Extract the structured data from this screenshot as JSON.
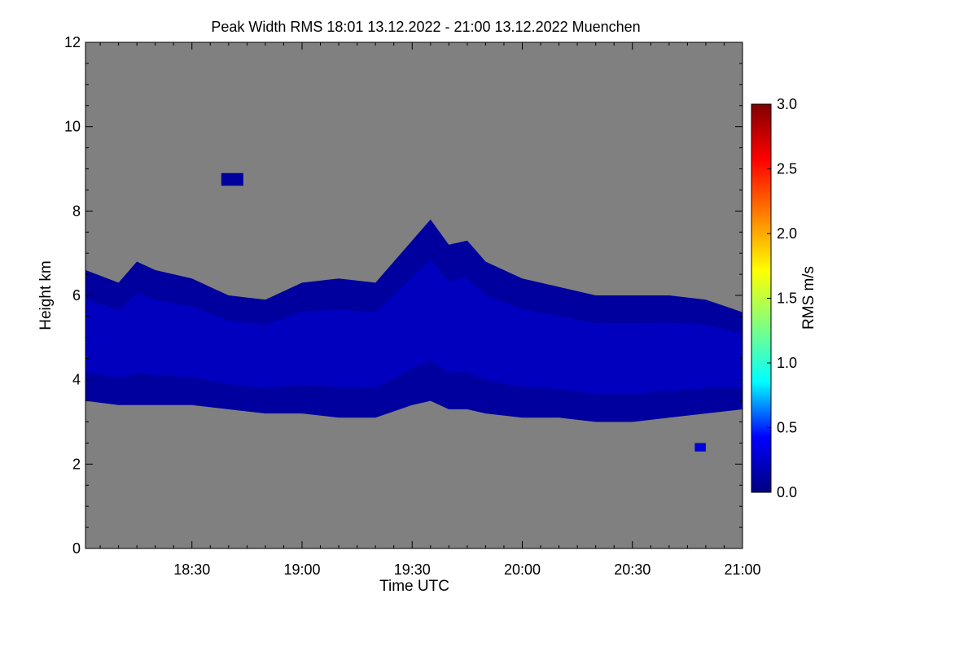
{
  "chart_data": {
    "type": "heatmap",
    "title": "Peak Width RMS   18:01 13.12.2022 - 21:00 13.12.2022 Muenchen",
    "xlabel": "Time UTC",
    "ylabel": "Height km",
    "xlim": [
      "18:01",
      "21:00"
    ],
    "ylim": [
      0,
      12
    ],
    "x_ticks": [
      "18:30",
      "19:00",
      "19:30",
      "20:00",
      "20:30",
      "21:00"
    ],
    "x_tick_minutes": [
      1110,
      1140,
      1170,
      1200,
      1230,
      1260
    ],
    "x_range_minutes": [
      1081,
      1260
    ],
    "y_ticks": [
      "0",
      "2",
      "4",
      "6",
      "8",
      "10",
      "12"
    ],
    "y_tick_values": [
      0,
      2,
      4,
      6,
      8,
      10,
      12
    ],
    "colorbar": {
      "label": "RMS m/s",
      "range": [
        0.0,
        3.0
      ],
      "ticks": [
        "0.0",
        "0.5",
        "1.0",
        "1.5",
        "2.0",
        "2.5",
        "3.0"
      ],
      "tick_values": [
        0.0,
        0.5,
        1.0,
        1.5,
        2.0,
        2.5,
        3.0
      ],
      "colors": [
        "#000080",
        "#0000ff",
        "#00ffff",
        "#80ff80",
        "#ffff00",
        "#ff8000",
        "#ff0000",
        "#800000"
      ]
    },
    "background_color": "#808080",
    "cloud_layer": {
      "time_minutes": [
        1081,
        1090,
        1095,
        1100,
        1110,
        1120,
        1130,
        1140,
        1150,
        1160,
        1170,
        1175,
        1180,
        1185,
        1190,
        1200,
        1210,
        1220,
        1230,
        1240,
        1250,
        1260
      ],
      "top_km": [
        6.6,
        6.3,
        6.8,
        6.6,
        6.4,
        6.0,
        5.9,
        6.3,
        6.4,
        6.3,
        7.3,
        7.8,
        7.2,
        7.3,
        6.8,
        6.4,
        6.2,
        6.0,
        6.0,
        6.0,
        5.9,
        5.6
      ],
      "base_km": [
        3.5,
        3.4,
        3.4,
        3.4,
        3.4,
        3.3,
        3.2,
        3.2,
        3.1,
        3.1,
        3.4,
        3.5,
        3.3,
        3.3,
        3.2,
        3.1,
        3.1,
        3.0,
        3.0,
        3.1,
        3.2,
        3.3
      ],
      "rms_core": 0.3,
      "rms_edge": 0.1
    },
    "minor_echoes": [
      {
        "time_minutes": [
          1118,
          1124
        ],
        "height_km": [
          8.6,
          8.9
        ],
        "rms": 0.1
      },
      {
        "time_minutes": [
          1247,
          1250
        ],
        "height_km": [
          2.3,
          2.5
        ],
        "rms": 0.3
      }
    ]
  }
}
